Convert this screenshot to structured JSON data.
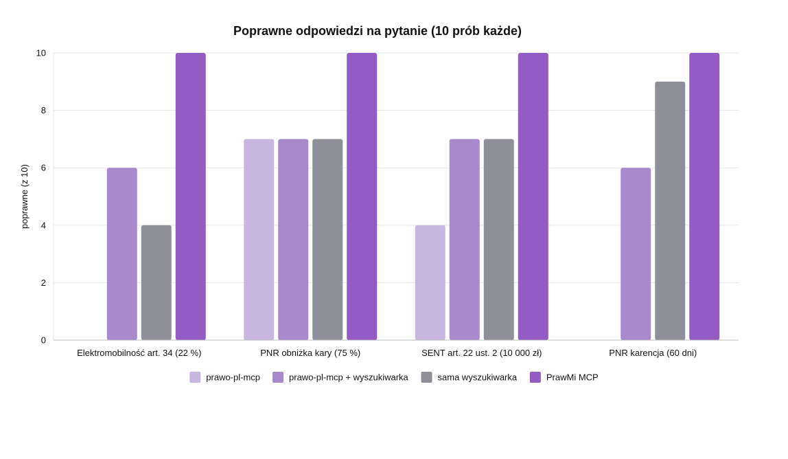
{
  "chart_data": {
    "type": "bar",
    "title": "Poprawne odpowiedzi na pytanie (10 prób każde)",
    "xlabel": "",
    "ylabel": "poprawne (z 10)",
    "ylim": [
      0,
      10
    ],
    "yticks": [
      0,
      2,
      4,
      6,
      8,
      10
    ],
    "grid": true,
    "legend_position": "bottom",
    "categories": [
      "Elektromobilność art. 34 (22 %)",
      "PNR obniżka kary (75 %)",
      "SENT art. 22 ust. 2 (10 000 zł)",
      "PNR karencja (60 dni)"
    ],
    "series": [
      {
        "name": "prawo-pl-mcp",
        "color": "#c8b6e0",
        "values": [
          0,
          7,
          4,
          0
        ]
      },
      {
        "name": "prawo-pl-mcp + wyszukiwarka",
        "color": "#a889cb",
        "values": [
          6,
          7,
          7,
          6
        ]
      },
      {
        "name": "sama wyszukiwarka",
        "color": "#8f8f99",
        "values": [
          4,
          7,
          7,
          9
        ]
      },
      {
        "name": "PrawMi MCP",
        "color": "#935bc3",
        "values": [
          10,
          10,
          10,
          10
        ]
      }
    ]
  }
}
